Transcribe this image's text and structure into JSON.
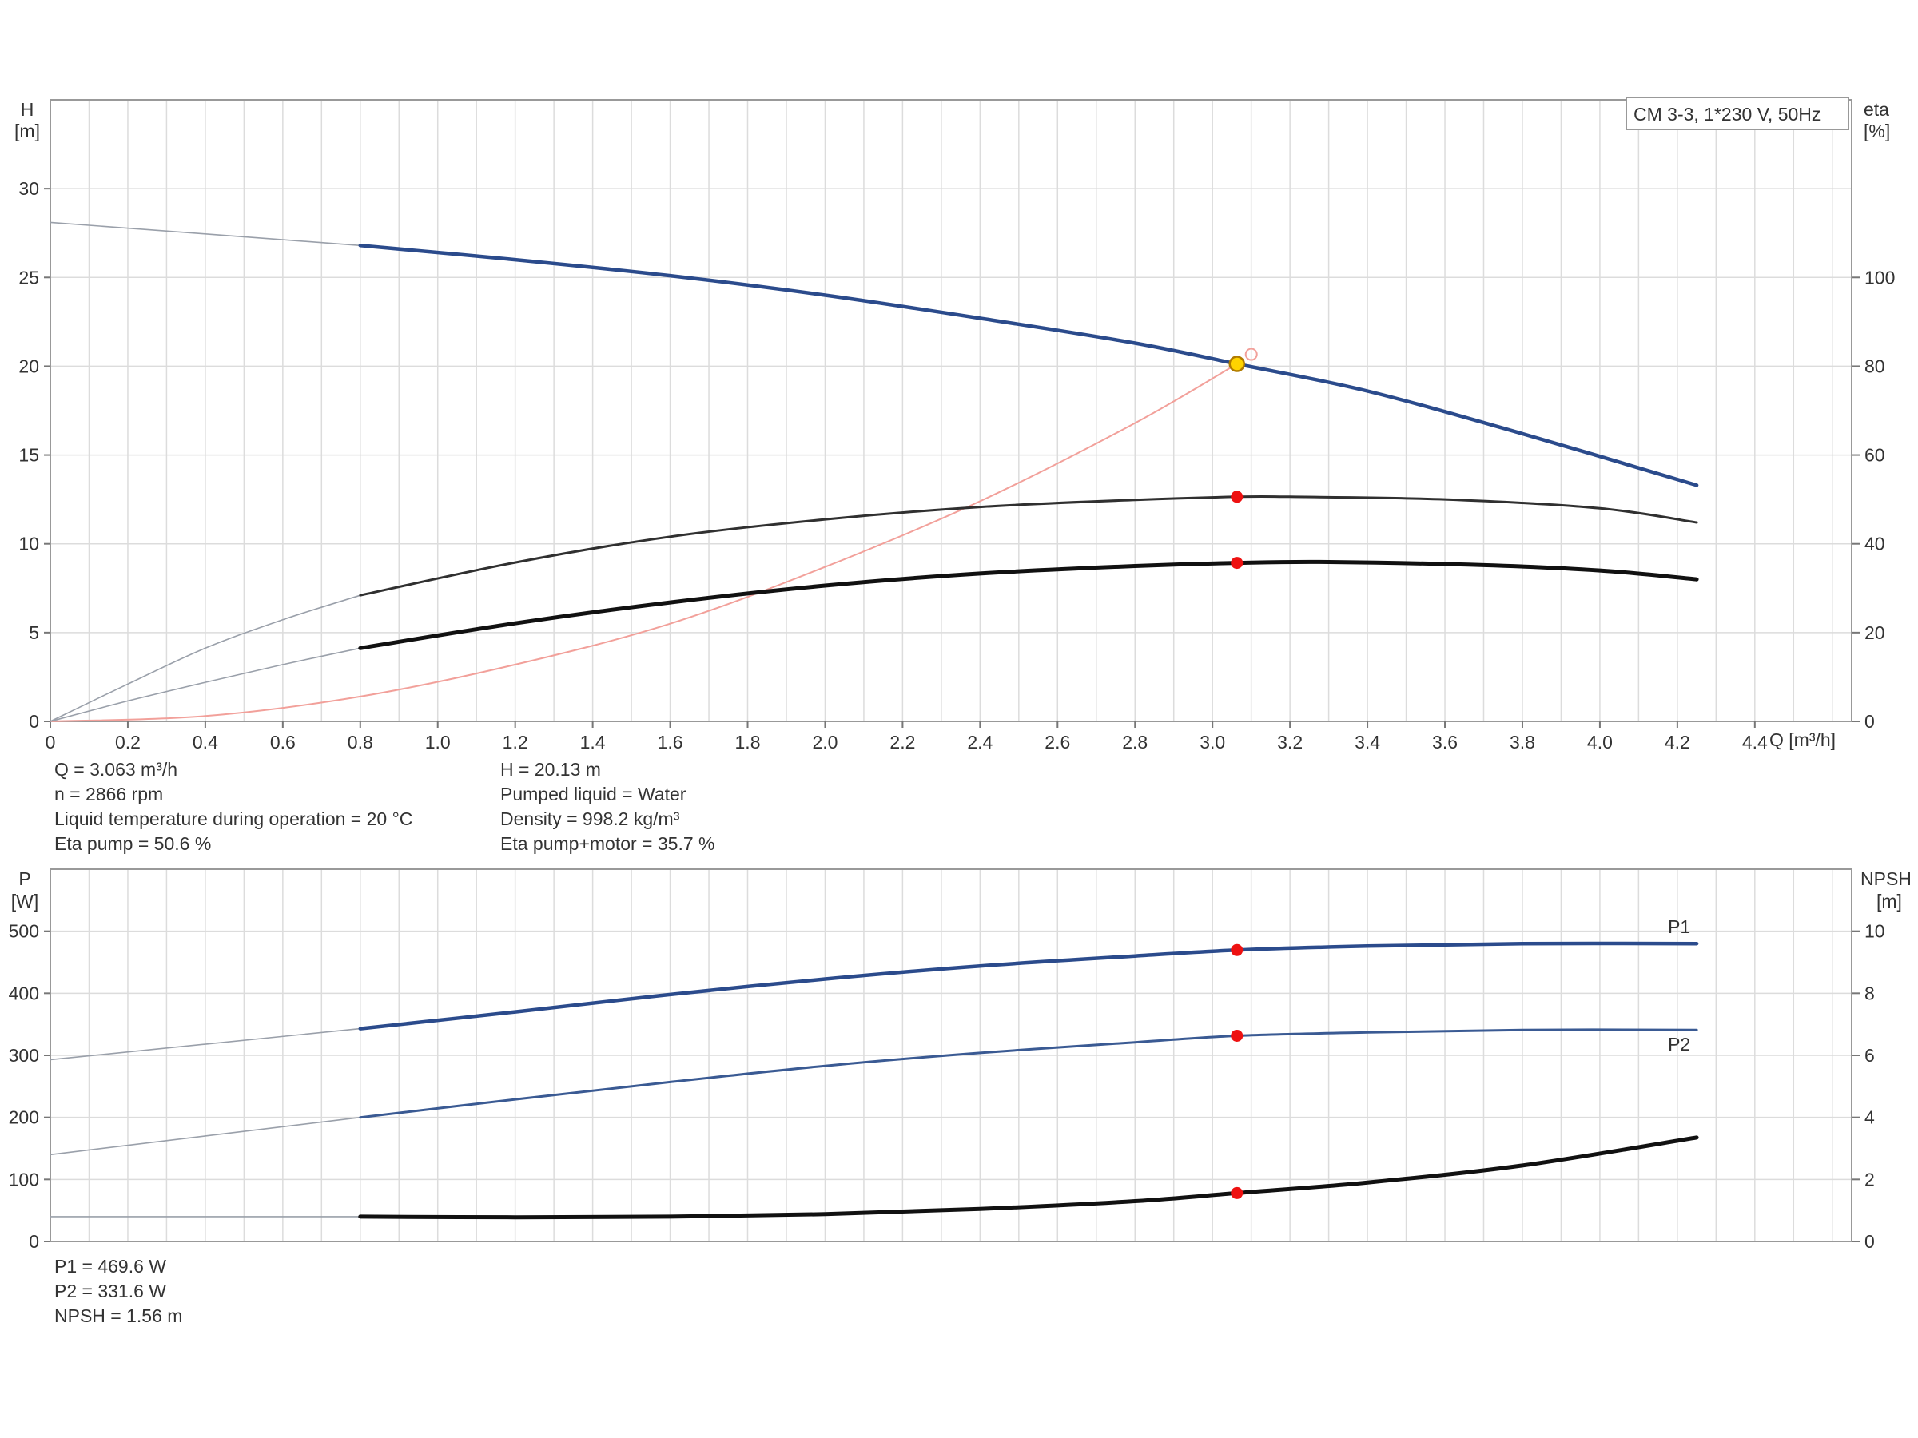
{
  "chart_data": [
    {
      "type": "line",
      "legend_box": "CM 3-3, 1*230 V, 50Hz",
      "xlabel": "Q [m³/h]",
      "x_ticks": [
        "0",
        "0.2",
        "0.4",
        "0.6",
        "0.8",
        "1.0",
        "1.2",
        "1.4",
        "1.6",
        "1.8",
        "2.0",
        "2.2",
        "2.4",
        "2.6",
        "2.8",
        "3.0",
        "3.2",
        "3.4",
        "3.6",
        "3.8",
        "4.0",
        "4.2",
        "4.4"
      ],
      "xlim": [
        0,
        4.65
      ],
      "ylabel_left": [
        "H",
        "[m]"
      ],
      "ylim_left": [
        0,
        35
      ],
      "y_ticks_left": [
        0,
        5,
        10,
        15,
        20,
        25,
        30
      ],
      "ylabel_right": [
        "eta",
        "[%]"
      ],
      "ylim_right": [
        0,
        140
      ],
      "y_ticks_right": [
        0,
        20,
        40,
        60,
        80,
        100
      ],
      "grid": true,
      "series": [
        {
          "axis": "left",
          "color": "#2b4b8c",
          "points": [
            [
              0.8,
              26.8
            ],
            [
              1.2,
              26.0
            ],
            [
              1.6,
              25.1
            ],
            [
              2.0,
              24.0
            ],
            [
              2.4,
              22.7
            ],
            [
              2.8,
              21.3
            ],
            [
              3.063,
              20.13
            ],
            [
              3.4,
              18.6
            ],
            [
              3.8,
              16.2
            ],
            [
              4.25,
              13.3
            ]
          ],
          "extrapolated": [
            [
              0,
              28.1
            ],
            [
              0.8,
              26.8
            ]
          ]
        },
        {
          "axis": "right",
          "color": "#303030",
          "points": [
            [
              0.8,
              28.4
            ],
            [
              1.2,
              35.8
            ],
            [
              1.6,
              41.6
            ],
            [
              2.0,
              45.5
            ],
            [
              2.4,
              48.3
            ],
            [
              2.8,
              49.9
            ],
            [
              3.063,
              50.6
            ],
            [
              3.2,
              50.6
            ],
            [
              3.6,
              50.0
            ],
            [
              4.0,
              48.0
            ],
            [
              4.25,
              44.8
            ]
          ],
          "extrapolated": [
            [
              0,
              0
            ],
            [
              0.2,
              8.4
            ],
            [
              0.4,
              16.5
            ],
            [
              0.6,
              22.9
            ],
            [
              0.8,
              28.4
            ]
          ]
        },
        {
          "axis": "right",
          "color": "#111111",
          "points": [
            [
              0.8,
              16.5
            ],
            [
              1.2,
              22.1
            ],
            [
              1.6,
              26.8
            ],
            [
              2.0,
              30.6
            ],
            [
              2.4,
              33.3
            ],
            [
              2.8,
              35.0
            ],
            [
              3.063,
              35.7
            ],
            [
              3.3,
              35.9
            ],
            [
              3.7,
              35.2
            ],
            [
              4.0,
              34.0
            ],
            [
              4.25,
              32.0
            ]
          ],
          "extrapolated": [
            [
              0,
              0
            ],
            [
              0.2,
              4.6
            ],
            [
              0.4,
              8.8
            ],
            [
              0.6,
              12.8
            ],
            [
              0.8,
              16.5
            ]
          ]
        }
      ],
      "system_curve": [
        [
          0,
          0
        ],
        [
          0.4,
          0.3
        ],
        [
          0.8,
          1.4
        ],
        [
          1.2,
          3.2
        ],
        [
          1.6,
          5.5
        ],
        [
          2.0,
          8.7
        ],
        [
          2.4,
          12.4
        ],
        [
          2.8,
          16.8
        ],
        [
          3.063,
          20.13
        ]
      ],
      "duty_point": {
        "Q": 3.063,
        "H": 20.13,
        "eta_pump": 50.6,
        "eta_total": 35.7
      },
      "info_left": [
        "Q = 3.063 m³/h",
        "n = 2866 rpm",
        "Liquid temperature during operation = 20 °C",
        "Eta pump = 50.6 %"
      ],
      "info_right": [
        "H = 20.13 m",
        "Pumped liquid = Water",
        "Density = 998.2 kg/m³",
        "Eta pump+motor = 35.7 %"
      ]
    },
    {
      "type": "line",
      "ylabel_left": [
        "P",
        "[W]"
      ],
      "ylim_left": [
        0,
        600
      ],
      "y_ticks_left": [
        0,
        100,
        200,
        300,
        400,
        500
      ],
      "ylabel_right": [
        "NPSH",
        "[m]"
      ],
      "ylim_right": [
        0,
        12
      ],
      "y_ticks_right": [
        0,
        2,
        4,
        6,
        8,
        10
      ],
      "grid": true,
      "series": [
        {
          "name": "P1",
          "axis": "left",
          "color": "#2b4b8c",
          "points": [
            [
              0.8,
              343
            ],
            [
              1.2,
              370
            ],
            [
              1.6,
              398
            ],
            [
              2.0,
              423
            ],
            [
              2.4,
              444
            ],
            [
              2.8,
              460
            ],
            [
              3.063,
              469.6
            ],
            [
              3.4,
              476
            ],
            [
              3.8,
              480
            ],
            [
              4.25,
              480
            ]
          ],
          "extrapolated": [
            [
              0,
              293
            ],
            [
              0.8,
              343
            ]
          ]
        },
        {
          "name": "P2",
          "axis": "left",
          "color": "#3a5a93",
          "points": [
            [
              0.8,
              200
            ],
            [
              1.2,
              229
            ],
            [
              1.6,
              257
            ],
            [
              2.0,
              283
            ],
            [
              2.4,
              304
            ],
            [
              2.8,
              321
            ],
            [
              3.063,
              331.6
            ],
            [
              3.4,
              337
            ],
            [
              3.8,
              341
            ],
            [
              4.25,
              341
            ]
          ],
          "extrapolated": [
            [
              0,
              140
            ],
            [
              0.8,
              200
            ]
          ]
        },
        {
          "axis": "right",
          "color": "#111111",
          "points": [
            [
              0.8,
              0.8
            ],
            [
              1.2,
              0.78
            ],
            [
              1.6,
              0.8
            ],
            [
              2.0,
              0.88
            ],
            [
              2.4,
              1.05
            ],
            [
              2.8,
              1.3
            ],
            [
              3.063,
              1.56
            ],
            [
              3.4,
              1.9
            ],
            [
              3.8,
              2.45
            ],
            [
              4.25,
              3.35
            ]
          ],
          "extrapolated": [
            [
              0,
              0.8
            ],
            [
              0.8,
              0.8
            ]
          ]
        }
      ],
      "duty_point": {
        "P1": 469.6,
        "P2": 331.6,
        "NPSH": 1.56
      },
      "info": [
        "P1 = 469.6 W",
        "P2 = 331.6 W",
        "NPSH = 1.56 m"
      ]
    }
  ]
}
